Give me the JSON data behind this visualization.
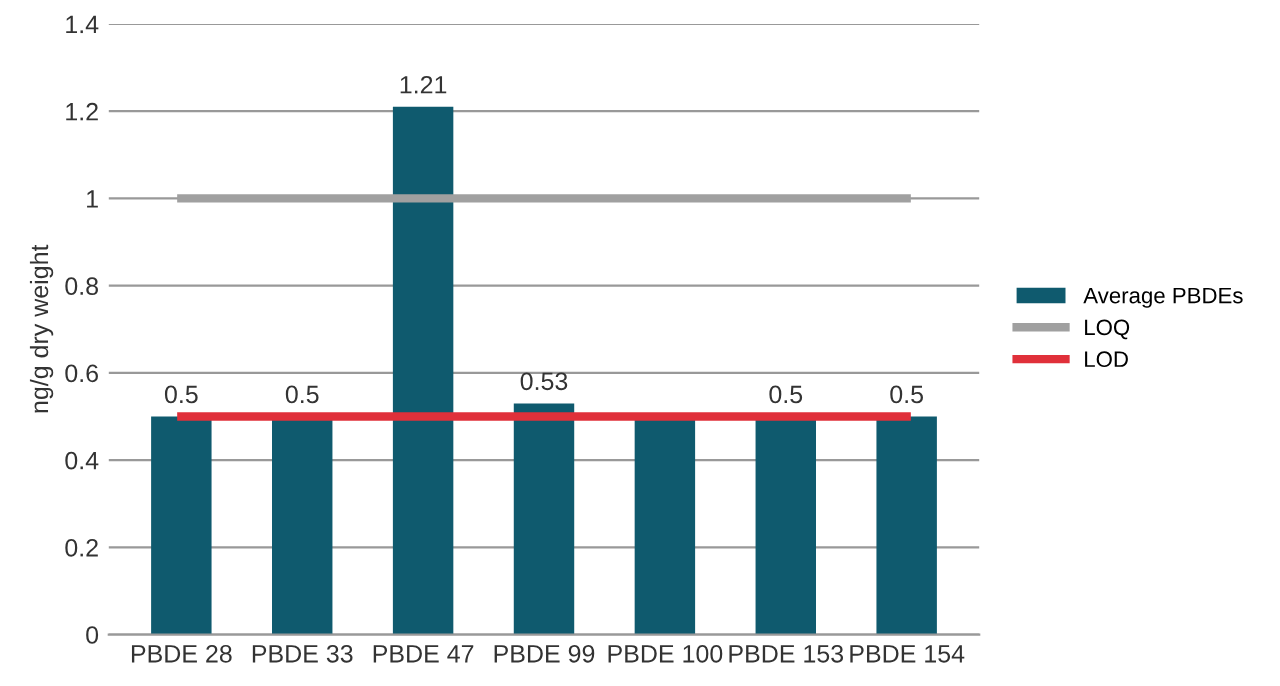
{
  "chart_data": {
    "type": "bar",
    "ylabel": "ng/g dry weight",
    "categories": [
      "PBDE 28",
      "PBDE 33",
      "PBDE 47",
      "PBDE 99",
      "PBDE 100",
      "PBDE 153",
      "PBDE 154"
    ],
    "series": [
      {
        "name": "Average PBDEs",
        "color": "#0f5a6e",
        "values": [
          0.5,
          0.5,
          1.21,
          0.53,
          0.5,
          0.5,
          0.5
        ],
        "value_labels": [
          "0.5",
          "0.5",
          "1.21",
          "0.53",
          null,
          "0.5",
          "0.5"
        ]
      },
      {
        "name": "LOQ",
        "type": "line",
        "color": "#a0a0a0",
        "values": [
          1,
          1,
          1,
          1,
          1,
          1,
          1
        ]
      },
      {
        "name": "LOD",
        "type": "line",
        "color": "#e0303a",
        "values": [
          0.5,
          0.5,
          0.5,
          0.5,
          0.5,
          0.5,
          0.5
        ]
      }
    ],
    "ylim": [
      0,
      1.4
    ],
    "yticks": [
      0,
      0.2,
      0.4,
      0.6,
      0.8,
      1,
      1.2,
      1.4
    ],
    "grid": "y",
    "legend": "right"
  }
}
